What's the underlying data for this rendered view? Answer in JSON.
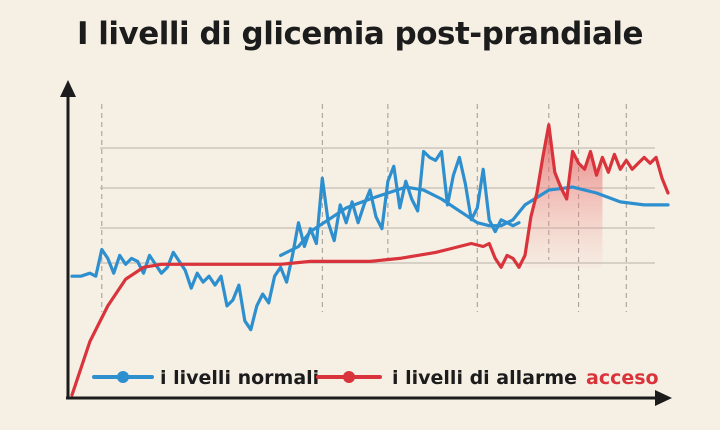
{
  "colors": {
    "background": "#f6efe4",
    "normal": "#2e8fcf",
    "alarm": "#d9333b",
    "axis": "#1c1c1c",
    "grid": "#9e9a93"
  },
  "chart_data": {
    "type": "line",
    "title": "I livelli di glicemia post-prandiale",
    "xlabel": "",
    "ylabel": "",
    "x_ticks_shown": false,
    "y_ticks_shown": false,
    "xlim": [
      0,
      100
    ],
    "ylim": [
      0,
      100
    ],
    "grid": "dashed vertical and horizontal",
    "legend_position": "bottom",
    "series": [
      {
        "name": "i livelli normali",
        "role": "normal",
        "style": "jagged",
        "points": [
          [
            0,
            40
          ],
          [
            1.5,
            40
          ],
          [
            3,
            41
          ],
          [
            4,
            40
          ],
          [
            5,
            49
          ],
          [
            6,
            46
          ],
          [
            7,
            41
          ],
          [
            8,
            47
          ],
          [
            9,
            44
          ],
          [
            10,
            46
          ],
          [
            11,
            45
          ],
          [
            12,
            41
          ],
          [
            13,
            47
          ],
          [
            14,
            44
          ],
          [
            15,
            41
          ],
          [
            16,
            43
          ],
          [
            17,
            48
          ],
          [
            18,
            45
          ],
          [
            19,
            42
          ],
          [
            20,
            36
          ],
          [
            21,
            41
          ],
          [
            22,
            38
          ],
          [
            23,
            40
          ],
          [
            24,
            37
          ],
          [
            25,
            40
          ],
          [
            26,
            30
          ],
          [
            27,
            32
          ],
          [
            28,
            37
          ],
          [
            29,
            25
          ],
          [
            30,
            22
          ],
          [
            31,
            30
          ],
          [
            32,
            34
          ],
          [
            33,
            31
          ],
          [
            34,
            40
          ],
          [
            35,
            43
          ],
          [
            36,
            38
          ],
          [
            37,
            47
          ],
          [
            38,
            58
          ],
          [
            39,
            50
          ],
          [
            40,
            56
          ],
          [
            41,
            51
          ],
          [
            42,
            73
          ],
          [
            43,
            58
          ],
          [
            44,
            52
          ],
          [
            45,
            64
          ],
          [
            46,
            58
          ],
          [
            47,
            65
          ],
          [
            48,
            58
          ],
          [
            49,
            64
          ],
          [
            50,
            69
          ],
          [
            51,
            60
          ],
          [
            52,
            56
          ],
          [
            53,
            72
          ],
          [
            54,
            77
          ],
          [
            55,
            63
          ],
          [
            56,
            72
          ],
          [
            57,
            66
          ],
          [
            58,
            62
          ],
          [
            59,
            82
          ],
          [
            60,
            80
          ],
          [
            61,
            79
          ],
          [
            62,
            82
          ],
          [
            63,
            64
          ],
          [
            64,
            74
          ],
          [
            65,
            80
          ],
          [
            66,
            71
          ],
          [
            67,
            59
          ],
          [
            68,
            63
          ],
          [
            69,
            76
          ],
          [
            70,
            59
          ],
          [
            71,
            55
          ],
          [
            72,
            59
          ],
          [
            73,
            58
          ],
          [
            74,
            57
          ],
          [
            75,
            58
          ]
        ]
      },
      {
        "name": "i livelli normali",
        "role": "normal",
        "style": "smooth",
        "points": [
          [
            35,
            47
          ],
          [
            38,
            50
          ],
          [
            40,
            55
          ],
          [
            43,
            59
          ],
          [
            46,
            63
          ],
          [
            50,
            66
          ],
          [
            53,
            68
          ],
          [
            56,
            70
          ],
          [
            59,
            69
          ],
          [
            62,
            66
          ],
          [
            65,
            62
          ],
          [
            68,
            58
          ],
          [
            70,
            57
          ],
          [
            72,
            57
          ],
          [
            74,
            59
          ],
          [
            76,
            64
          ],
          [
            80,
            69
          ],
          [
            84,
            70
          ],
          [
            88,
            68
          ],
          [
            92,
            65
          ],
          [
            96,
            64
          ],
          [
            100,
            64
          ]
        ]
      },
      {
        "name": "i livelli di allarme",
        "role": "alarm",
        "style": "line",
        "points": [
          [
            0,
            0
          ],
          [
            3,
            18
          ],
          [
            6,
            30
          ],
          [
            9,
            39
          ],
          [
            12,
            43
          ],
          [
            15,
            44
          ],
          [
            18,
            44
          ],
          [
            22,
            44
          ],
          [
            26,
            44
          ],
          [
            30,
            44
          ],
          [
            35,
            44
          ],
          [
            40,
            45
          ],
          [
            45,
            45
          ],
          [
            50,
            45
          ],
          [
            55,
            46
          ],
          [
            58,
            47
          ],
          [
            61,
            48
          ],
          [
            63,
            49
          ],
          [
            65,
            50
          ],
          [
            67,
            51
          ],
          [
            69,
            50
          ],
          [
            70,
            51
          ],
          [
            71,
            46
          ],
          [
            72,
            43
          ],
          [
            73,
            47
          ],
          [
            74,
            46
          ],
          [
            75,
            43
          ],
          [
            76,
            47
          ],
          [
            77,
            60
          ],
          [
            78,
            68
          ],
          [
            79,
            80
          ],
          [
            80,
            91
          ],
          [
            81,
            75
          ],
          [
            82,
            70
          ],
          [
            83,
            66
          ],
          [
            84,
            82
          ],
          [
            85,
            78
          ],
          [
            86,
            76
          ],
          [
            87,
            82
          ],
          [
            88,
            74
          ],
          [
            89,
            80
          ],
          [
            90,
            75
          ],
          [
            91,
            81
          ],
          [
            92,
            76
          ],
          [
            93,
            79
          ],
          [
            94,
            76
          ],
          [
            95,
            78
          ],
          [
            96,
            80
          ],
          [
            97,
            78
          ],
          [
            98,
            80
          ],
          [
            99,
            73
          ],
          [
            100,
            68
          ]
        ]
      }
    ],
    "legend": [
      {
        "label": "i livelli normali",
        "role": "normal"
      },
      {
        "label": "i livelli di allarme",
        "role": "alarm",
        "tag": "acceso"
      }
    ]
  }
}
